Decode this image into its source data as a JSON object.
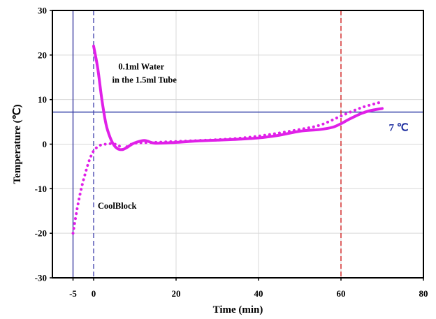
{
  "chart_data": {
    "type": "line",
    "xlabel": "Time (min)",
    "ylabel": "Temperature (℃)",
    "xlim": [
      -10,
      80
    ],
    "ylim": [
      -30,
      30
    ],
    "x_ticks": [
      "-5",
      "0",
      "20",
      "40",
      "60",
      "80"
    ],
    "x_tick_values": [
      -5,
      0,
      20,
      40,
      60,
      80
    ],
    "y_ticks": [
      "-30",
      "-20",
      "-10",
      "0",
      "10",
      "20",
      "30"
    ],
    "y_tick_values": [
      -30,
      -20,
      -10,
      0,
      10,
      20,
      30
    ],
    "grid": true,
    "reference_lines": [
      {
        "orientation": "horizontal",
        "value": 7.2,
        "style": "solid",
        "color": "#1f2fa0",
        "label": "7 ℃"
      },
      {
        "orientation": "vertical",
        "value": -5,
        "style": "solid",
        "color": "#3a3aa0"
      },
      {
        "orientation": "vertical",
        "value": 0,
        "style": "dashed",
        "color": "#4a4ab0"
      },
      {
        "orientation": "vertical",
        "value": 60,
        "style": "dashed",
        "color": "#d02020"
      }
    ],
    "annotations": [
      {
        "text": "0.1ml Water",
        "x": 6,
        "y": 16.8
      },
      {
        "text": "in the 1.5ml Tube",
        "x": 4.5,
        "y": 13.8
      },
      {
        "text": "CoolBlock",
        "x": 1,
        "y": -14.5
      }
    ],
    "series": [
      {
        "style": "solid",
        "color": "#e020e8",
        "x": [
          0,
          1,
          2,
          3,
          4,
          5,
          6,
          7,
          8,
          9,
          10,
          12,
          13,
          15,
          20,
          25,
          30,
          35,
          40,
          45,
          50,
          55,
          58,
          60,
          62,
          65,
          67,
          70
        ],
        "y": [
          22,
          17,
          10,
          4.5,
          1.5,
          -0.3,
          -1.1,
          -1.2,
          -0.8,
          -0.2,
          0.3,
          0.8,
          0.7,
          0.2,
          0.4,
          0.7,
          0.9,
          1.1,
          1.4,
          2.0,
          2.9,
          3.3,
          3.8,
          4.6,
          5.6,
          6.9,
          7.5,
          8.0
        ]
      },
      {
        "style": "dotted",
        "color": "#e020e8",
        "x": [
          -5,
          -4,
          -3,
          -2,
          -1,
          0,
          1,
          2,
          3,
          4,
          5,
          6,
          7,
          8,
          10,
          15,
          20,
          25,
          30,
          35,
          40,
          45,
          50,
          55,
          60,
          65,
          70
        ],
        "y": [
          -20,
          -14.5,
          -10,
          -6.5,
          -3.5,
          -1.5,
          -0.6,
          -0.1,
          0,
          0.1,
          0,
          -0.2,
          -1.2,
          -0.6,
          0.2,
          0.4,
          0.6,
          0.8,
          1.0,
          1.3,
          1.8,
          2.5,
          3.3,
          4.3,
          6.3,
          8.2,
          9.5
        ]
      }
    ]
  }
}
